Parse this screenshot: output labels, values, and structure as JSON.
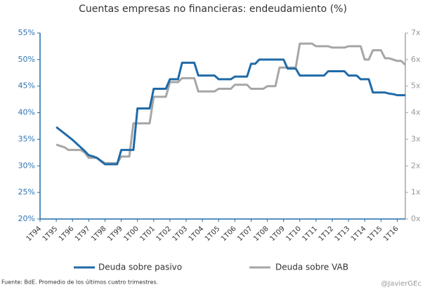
{
  "chart_data": {
    "type": "line",
    "title": "Cuentas empresas no financieras: endeudamiento (%)",
    "categories": [
      "1T94",
      null,
      null,
      null,
      "1T95",
      null,
      null,
      null,
      "1T96",
      null,
      null,
      null,
      "1T97",
      null,
      null,
      null,
      "1T98",
      null,
      null,
      null,
      "1T99",
      null,
      null,
      null,
      "1T00",
      null,
      null,
      null,
      "1T01",
      null,
      null,
      null,
      "1T02",
      null,
      null,
      null,
      "1T03",
      null,
      null,
      null,
      "1T04",
      null,
      null,
      null,
      "1T05",
      null,
      null,
      null,
      "1T06",
      null,
      null,
      null,
      "1T07",
      null,
      null,
      null,
      "1T08",
      null,
      null,
      null,
      "1T09",
      null,
      null,
      null,
      "1T10",
      null,
      null,
      null,
      "1T11",
      null,
      null,
      null,
      "1T12",
      null,
      null,
      null,
      "1T13",
      null,
      null,
      null,
      "1T14",
      null,
      null,
      null,
      "1T15",
      null,
      null,
      null,
      "1T16",
      null,
      null
    ],
    "series": [
      {
        "name": "Deuda sobre pasivo",
        "color": "#1f6aa8",
        "values": [
          null,
          null,
          null,
          null,
          37.3,
          36.7,
          36.1,
          35.5,
          34.9,
          34.2,
          33.5,
          32.8,
          32.0,
          31.8,
          31.5,
          30.9,
          30.3,
          30.3,
          30.3,
          30.3,
          33.0,
          33.0,
          33.0,
          33.0,
          40.8,
          40.8,
          40.8,
          40.8,
          44.5,
          44.5,
          44.5,
          44.5,
          46.3,
          46.3,
          46.3,
          49.4,
          49.4,
          49.4,
          49.4,
          47.0,
          47.0,
          47.0,
          47.0,
          47.0,
          46.3,
          46.3,
          46.3,
          46.3,
          46.8,
          46.8,
          46.8,
          46.8,
          49.2,
          49.2,
          50.0,
          50.0,
          50.0,
          50.0,
          50.0,
          50.0,
          50.0,
          48.3,
          48.3,
          48.3,
          47.0,
          47.0,
          47.0,
          47.0,
          47.0,
          47.0,
          47.0,
          47.8,
          47.8,
          47.8,
          47.8,
          47.8,
          47.0,
          47.0,
          47.0,
          46.3,
          46.3,
          46.3,
          43.8,
          43.8,
          43.8,
          43.8,
          43.6,
          43.5,
          43.3,
          43.3,
          43.3
        ]
      },
      {
        "name": "Deuda sobre VAB",
        "color": "#a6a6a6",
        "axis": "y2",
        "values": [
          null,
          null,
          null,
          null,
          2.8,
          2.75,
          2.7,
          2.6,
          2.6,
          2.6,
          2.6,
          2.5,
          2.3,
          2.3,
          2.3,
          2.2,
          2.1,
          2.1,
          2.1,
          2.1,
          2.35,
          2.35,
          2.35,
          3.6,
          3.6,
          3.6,
          3.6,
          3.6,
          4.6,
          4.6,
          4.6,
          4.6,
          5.15,
          5.15,
          5.15,
          5.3,
          5.3,
          5.3,
          5.3,
          4.8,
          4.8,
          4.8,
          4.8,
          4.8,
          4.9,
          4.9,
          4.9,
          4.9,
          5.05,
          5.05,
          5.05,
          5.05,
          4.9,
          4.9,
          4.9,
          4.9,
          5.0,
          5.0,
          5.0,
          5.7,
          5.7,
          5.7,
          5.7,
          5.7,
          6.6,
          6.6,
          6.6,
          6.6,
          6.5,
          6.5,
          6.5,
          6.5,
          6.45,
          6.45,
          6.45,
          6.45,
          6.5,
          6.5,
          6.5,
          6.5,
          6.0,
          6.0,
          6.35,
          6.35,
          6.35,
          6.05,
          6.05,
          6.0,
          5.95,
          5.95,
          5.8
        ]
      }
    ],
    "ylim": [
      20,
      55
    ],
    "yticks": [
      {
        "value": 20,
        "label": "20%"
      },
      {
        "value": 25,
        "label": "25%"
      },
      {
        "value": 30,
        "label": "30%"
      },
      {
        "value": 35,
        "label": "35%"
      },
      {
        "value": 40,
        "label": "40%"
      },
      {
        "value": 45,
        "label": "45%"
      },
      {
        "value": 50,
        "label": "50%"
      },
      {
        "value": 55,
        "label": "55%"
      }
    ],
    "y2lim": [
      0,
      7
    ],
    "y2ticks": [
      {
        "value": 0,
        "label": "0x"
      },
      {
        "value": 1,
        "label": "1x"
      },
      {
        "value": 2,
        "label": "2x"
      },
      {
        "value": 3,
        "label": "3x"
      },
      {
        "value": 4,
        "label": "4x"
      },
      {
        "value": 5,
        "label": "5x"
      },
      {
        "value": 6,
        "label": "6x"
      },
      {
        "value": 7,
        "label": "7x"
      }
    ],
    "legend": "bottom",
    "source": "Fuente: BdE. Promedio  de los últimos cuatro trimestres.",
    "credit": "@JavierGEc"
  }
}
